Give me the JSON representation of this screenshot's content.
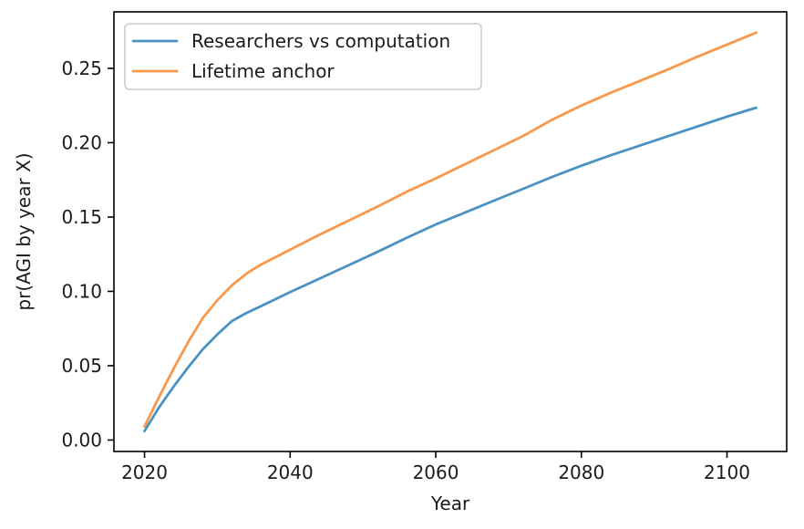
{
  "figure": {
    "background": "#ffffff",
    "axis_color": "#000000",
    "text_color": "#1c1c1c",
    "legend_border_color": "#cccccc",
    "legend_background": "#ffffff"
  },
  "chart_data": {
    "type": "line",
    "title": "",
    "xlabel": "Year",
    "ylabel": "pr(AGI by year X)",
    "grid": false,
    "legend_position": "upper-left",
    "xlim": [
      2015.8,
      2108.2
    ],
    "ylim": [
      -0.0077,
      0.288
    ],
    "xticks": [
      2020,
      2040,
      2060,
      2080,
      2100
    ],
    "xtick_labels": [
      "2020",
      "2040",
      "2060",
      "2080",
      "2100"
    ],
    "ytick_values": [
      0.0,
      0.05,
      0.1,
      0.15,
      0.2,
      0.25
    ],
    "ytick_labels": [
      "0.00",
      "0.05",
      "0.10",
      "0.15",
      "0.20",
      "0.25"
    ],
    "x": [
      2020,
      2022,
      2024,
      2026,
      2028,
      2030,
      2032,
      2034,
      2036,
      2040,
      2044,
      2048,
      2052,
      2056,
      2060,
      2064,
      2068,
      2072,
      2076,
      2080,
      2084,
      2088,
      2092,
      2096,
      2100,
      2104
    ],
    "series": [
      {
        "name": "Researchers vs computation",
        "color": "#4b92c3",
        "values": [
          0.006,
          0.022,
          0.036,
          0.049,
          0.061,
          0.071,
          0.08,
          0.0855,
          0.09,
          0.0995,
          0.1085,
          0.1175,
          0.1265,
          0.136,
          0.145,
          0.153,
          0.161,
          0.169,
          0.177,
          0.1845,
          0.1915,
          0.198,
          0.2045,
          0.211,
          0.2175,
          0.2235
        ]
      },
      {
        "name": "Lifetime anchor",
        "color": "#f9984a",
        "values": [
          0.009,
          0.029,
          0.048,
          0.066,
          0.082,
          0.094,
          0.104,
          0.112,
          0.118,
          0.128,
          0.138,
          0.1475,
          0.157,
          0.167,
          0.176,
          0.1855,
          0.195,
          0.2045,
          0.2155,
          0.225,
          0.2335,
          0.2415,
          0.2495,
          0.258,
          0.266,
          0.274
        ]
      }
    ]
  }
}
